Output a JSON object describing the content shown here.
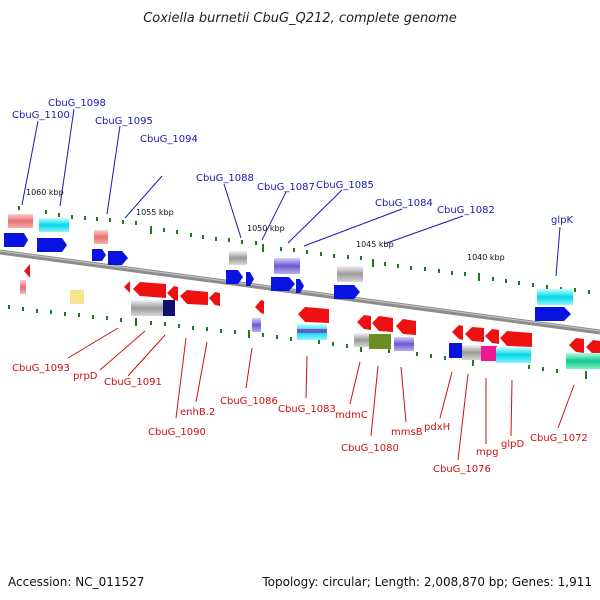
{
  "title": "Coxiella burnetii CbuG_Q212, complete genome",
  "footer": {
    "accession": "Accession: NC_011527",
    "summary": "Topology: circular; Length: 2,008,870 bp; Genes: 1,911"
  },
  "kbp_marks": [
    "1060 kbp",
    "1055 kbp",
    "1050 kbp",
    "1045 kbp",
    "1040 kbp"
  ],
  "labels_top": [
    "CbuG_1100",
    "CbuG_1098",
    "CbuG_1095",
    "CbuG_1094",
    "CbuG_1088",
    "CbuG_1087",
    "CbuG_1085",
    "CbuG_1084",
    "CbuG_1082",
    "glpK"
  ],
  "labels_bottom": [
    "CbuG_1093",
    "prpD",
    "CbuG_1091",
    "CbuG_1090",
    "enhB.2",
    "CbuG_1086",
    "CbuG_1083",
    "mdmC",
    "CbuG_1080",
    "mmsB",
    "pdxH",
    "CbuG_1076",
    "mpg",
    "glpD",
    "CbuG_1072"
  ],
  "colors": {
    "top_label": "#1a1ab0",
    "bottom_label": "#cc1111",
    "gene_forward": "#0a14e0",
    "gene_reverse": "#ee1111",
    "backbone": "#8c8c8c",
    "tick": "#1f7a1f"
  }
}
